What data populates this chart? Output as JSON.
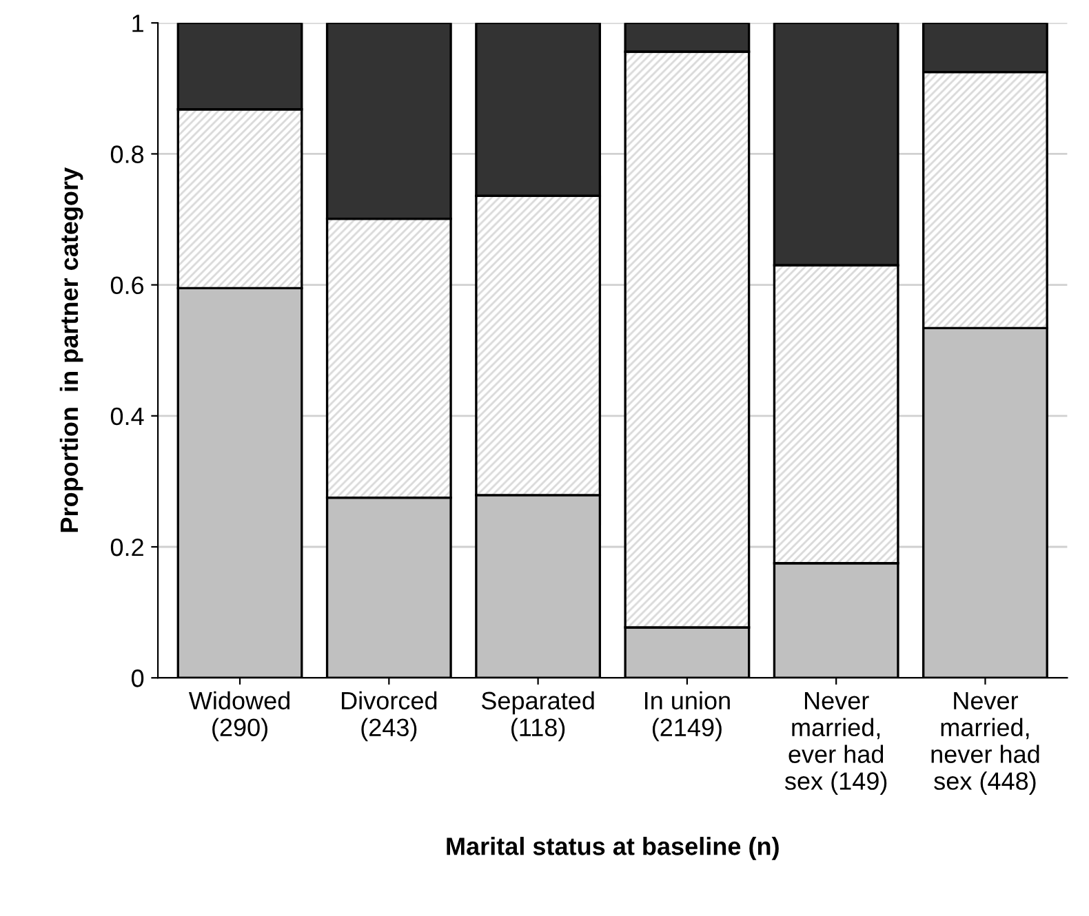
{
  "chart_data": {
    "type": "bar",
    "stacked": true,
    "xlabel": "Marital status at baseline (n)",
    "ylabel": "Proportion  in partner category",
    "categories": [
      "Widowed\n(290)",
      "Divorced\n(243)",
      "Separated\n(118)",
      "In union\n(2149)",
      "Never\nmarried,\never had\nsex (149)",
      "Never\nmarried,\nnever had\nsex (448)"
    ],
    "series": [
      {
        "color": "#c0c0c0",
        "values": [
          0.595,
          0.275,
          0.279,
          0.077,
          0.175,
          0.534
        ]
      },
      {
        "color": "#d9d9d9",
        "values": [
          0.273,
          0.426,
          0.457,
          0.879,
          0.455,
          0.391
        ]
      },
      {
        "color": "#333333",
        "values": [
          0.132,
          0.299,
          0.264,
          0.044,
          0.37,
          0.075
        ]
      }
    ],
    "ylim": [
      0,
      1
    ],
    "yticks": [
      0,
      0.2,
      0.4,
      0.6,
      0.8,
      1
    ],
    "grid": "y",
    "legend": false
  }
}
